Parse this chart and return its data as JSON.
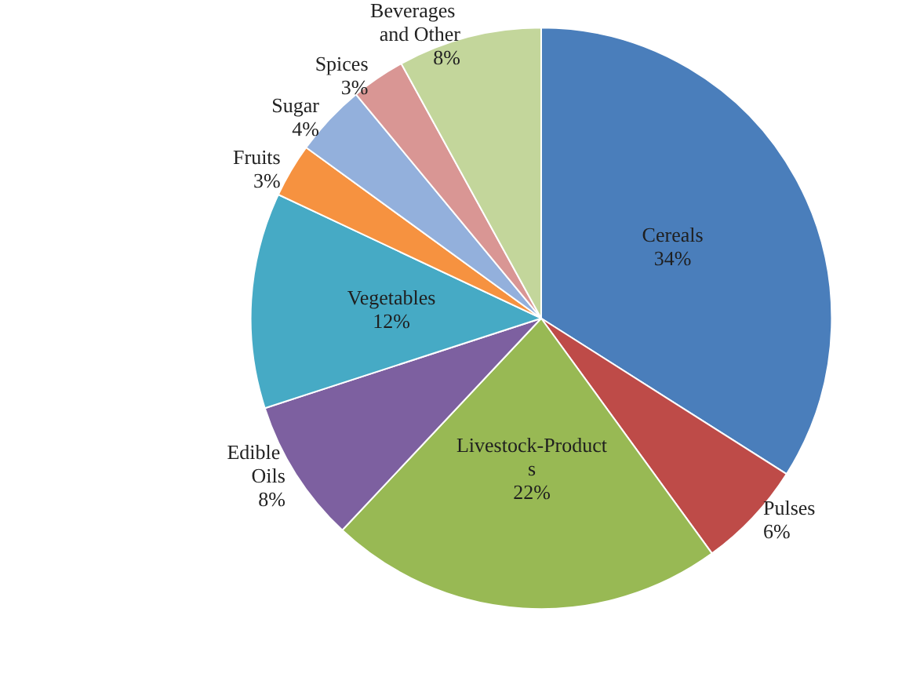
{
  "chart_data": {
    "type": "pie",
    "categories": [
      "Cereals",
      "Pulses",
      "Livestock-Products",
      "Edible Oils",
      "Vegetables",
      "Fruits",
      "Sugar",
      "Spices",
      "Beverages and Other"
    ],
    "values": [
      34,
      6,
      22,
      8,
      12,
      3,
      4,
      3,
      8
    ],
    "colors": [
      "#4a7ebb",
      "#be4b48",
      "#98b954",
      "#7d60a0",
      "#46aac5",
      "#f69240",
      "#93b0dc",
      "#d99694",
      "#c3d69b"
    ],
    "value_labels": [
      "34%",
      "6%",
      "22%",
      "8%",
      "12%",
      "3%",
      "4%",
      "3%",
      "8%"
    ],
    "legend": false
  }
}
